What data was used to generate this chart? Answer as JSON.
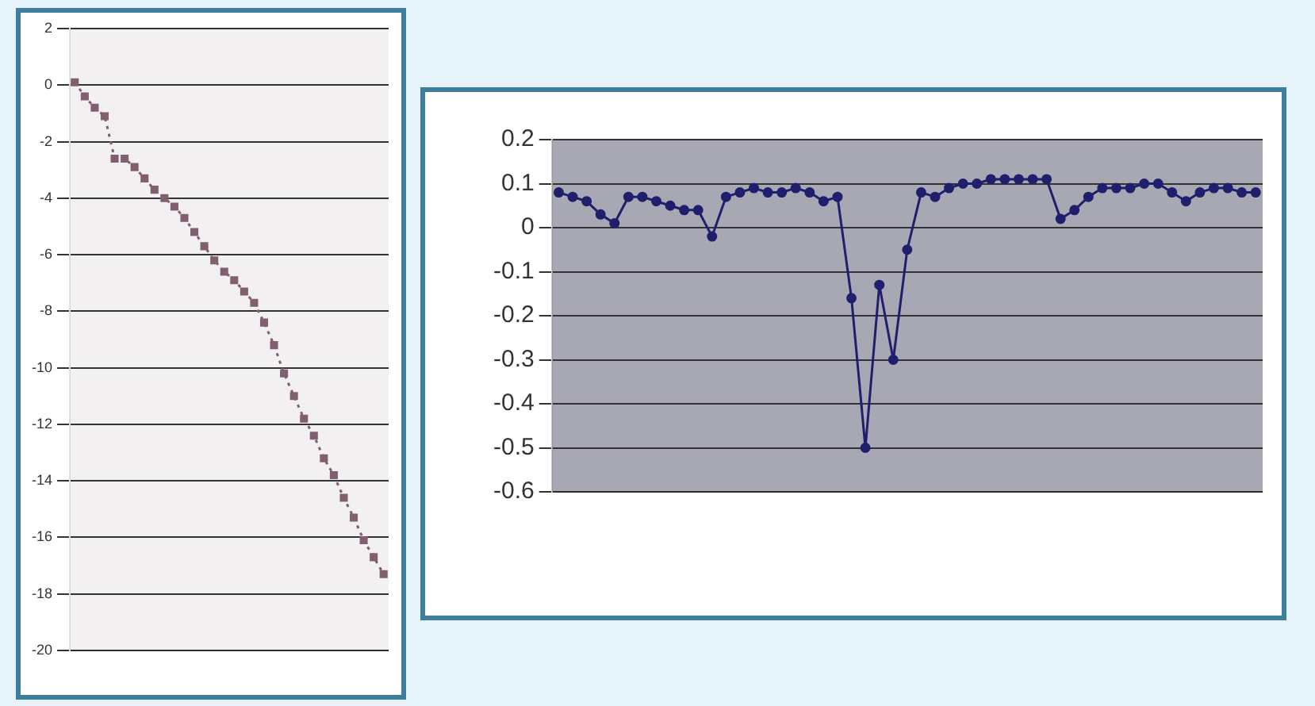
{
  "chart_data": [
    {
      "type": "line",
      "categories": [
        null,
        null,
        null,
        null,
        null,
        null,
        null,
        null,
        null,
        null,
        null,
        null,
        null,
        null,
        null,
        null,
        null,
        null,
        null,
        null,
        null,
        null,
        null,
        null,
        null,
        null,
        null,
        null,
        null,
        null,
        null,
        null
      ],
      "values": [
        0.1,
        -0.4,
        -0.8,
        -1.1,
        -2.6,
        -2.6,
        -2.9,
        -3.3,
        -3.7,
        -4,
        -4.3,
        -4.7,
        -5.2,
        -5.7,
        -6.2,
        -6.6,
        -6.9,
        -7.3,
        -7.7,
        -8.4,
        -9.2,
        -10.2,
        -11,
        -11.8,
        -12.4,
        -13.2,
        -13.8,
        -14.6,
        -15.3,
        -16.1,
        -16.7,
        -17.3
      ],
      "color": "#806070",
      "ylim": [
        -20,
        2
      ],
      "yticks": [
        -20,
        -18,
        -16,
        -14,
        -12,
        -10,
        -8,
        -6,
        -4,
        -2,
        0,
        2
      ],
      "grid": "y",
      "tick_labels": "y",
      "marker": "square",
      "line_style": "dotted",
      "legend": false
    },
    {
      "type": "line",
      "categories": [
        null,
        null,
        null,
        null,
        null,
        null,
        null,
        null,
        null,
        null,
        null,
        null,
        null,
        null,
        null,
        null,
        null,
        null,
        null,
        null,
        null,
        null,
        null,
        null,
        null,
        null,
        null,
        null,
        null,
        null,
        null,
        null,
        null,
        null,
        null,
        null,
        null,
        null,
        null,
        null,
        null,
        null,
        null,
        null,
        null,
        null,
        null,
        null,
        null,
        null,
        null
      ],
      "values": [
        0.08,
        0.07,
        0.06,
        0.03,
        0.01,
        0.07,
        0.07,
        0.06,
        0.05,
        0.04,
        0.04,
        -0.02,
        0.07,
        0.08,
        0.09,
        0.08,
        0.08,
        0.09,
        0.08,
        0.06,
        0.07,
        -0.16,
        -0.5,
        -0.13,
        -0.3,
        -0.05,
        0.08,
        0.07,
        0.09,
        0.1,
        0.1,
        0.11,
        0.11,
        0.11,
        0.11,
        0.11,
        0.02,
        0.04,
        0.07,
        0.09,
        0.09,
        0.09,
        0.1,
        0.1,
        0.08,
        0.06,
        0.08,
        0.09,
        0.09,
        0.08,
        0.08
      ],
      "color": "#1f1f6e",
      "ylim": [
        -0.6,
        0.2
      ],
      "yticks": [
        -0.6,
        -0.5,
        -0.4,
        -0.3,
        -0.2,
        -0.1,
        0,
        0.1,
        0.2
      ],
      "grid": "y",
      "tick_labels": "y",
      "marker": "circle",
      "line_style": "solid",
      "legend": false
    }
  ]
}
